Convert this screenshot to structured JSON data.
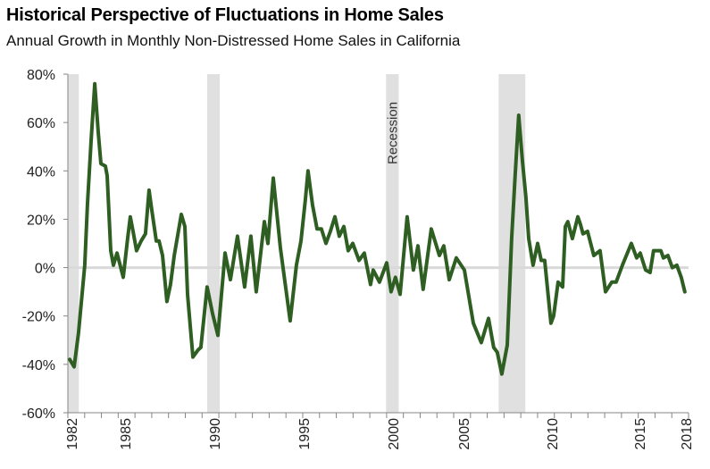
{
  "title": "Historical Perspective of Fluctuations in Home Sales",
  "subtitle": "Annual Growth in Monthly Non-Distressed Home Sales in California",
  "chart_data": {
    "type": "line",
    "title": "Historical Perspective of Fluctuations in Home Sales",
    "subtitle": "Annual Growth in Monthly Non-Distressed Home Sales in California",
    "xlabel": "",
    "ylabel": "",
    "ylim": [
      -60,
      80
    ],
    "yticks": [
      80,
      60,
      40,
      20,
      0,
      -20,
      -40,
      -60
    ],
    "ytick_labels": [
      "80%",
      "60%",
      "40%",
      "20%",
      "0%",
      "-20%",
      "-40%",
      "-60%"
    ],
    "xticks": [
      "1982",
      "1985",
      "1990",
      "1995",
      "2000",
      "2005",
      "2010",
      "2015",
      "2018"
    ],
    "grid": false,
    "zero_line": true,
    "line_color": "#2e5e22",
    "recession_color": "#e0e0e0",
    "recession_label": "Recession",
    "recessions": [
      [
        1982.2,
        1982.85
      ],
      [
        1990.45,
        1991.2
      ],
      [
        2001.05,
        2001.8
      ],
      [
        2007.72,
        2009.3
      ]
    ],
    "series": [
      {
        "x": [
          1982.31,
          1982.57,
          1982.83,
          1983.2,
          1983.36,
          1983.58,
          1983.79,
          1984.0,
          1984.16,
          1984.42,
          1984.53,
          1984.74,
          1984.9,
          1985.11,
          1985.48,
          1985.74,
          1985.9,
          1986.06,
          1986.27,
          1986.54,
          1986.8,
          1987.01,
          1987.17,
          1987.44,
          1987.6,
          1987.81,
          1988.07,
          1988.28,
          1988.5,
          1988.92,
          1989.13,
          1989.29,
          1989.61,
          1989.92,
          1990.08,
          1990.45,
          1990.77,
          1991.09,
          1991.51,
          1991.83,
          1992.25,
          1992.67,
          1993.04,
          1993.36,
          1993.84,
          1994.05,
          1994.37,
          1994.79,
          1995.37,
          1995.74,
          1996.01,
          1996.27,
          1996.43,
          1996.69,
          1996.96,
          1997.22,
          1997.49,
          1997.75,
          1998.02,
          1998.28,
          1998.55,
          1998.81,
          1999.08,
          1999.45,
          1999.76,
          2000.13,
          2000.29,
          2000.66,
          2001.09,
          2001.35,
          2001.61,
          2001.88,
          2002.3,
          2002.67,
          2002.94,
          2003.25,
          2003.73,
          2004.21,
          2004.47,
          2004.79,
          2005.21,
          2005.69,
          2006.22,
          2006.69,
          2007.12,
          2007.43,
          2007.64,
          2007.91,
          2008.23,
          2008.49,
          2008.7,
          2008.91,
          2009.13,
          2009.34,
          2009.5,
          2009.76,
          2010.03,
          2010.24,
          2010.45,
          2010.82,
          2010.98,
          2011.24,
          2011.51,
          2011.67,
          2011.82,
          2012.09,
          2012.41,
          2012.56,
          2012.72,
          2012.99,
          2013.36,
          2013.73,
          2014.05,
          2014.42,
          2014.68,
          2015.05,
          2015.58,
          2015.9,
          2016.11,
          2016.43,
          2016.69,
          2016.9,
          2017.33,
          2017.48,
          2017.75,
          2018.01,
          2018.28,
          2018.54,
          2018.75
        ],
        "y": [
          -38,
          -41,
          -27,
          1,
          26,
          53,
          76,
          56,
          43,
          42,
          38,
          7,
          1,
          6,
          -4,
          12,
          21,
          15,
          7,
          11,
          14,
          32,
          24,
          11,
          11,
          5,
          -14,
          -7,
          5,
          22,
          17,
          -11,
          -37,
          -34,
          -33,
          -8,
          -19,
          -28,
          6,
          -5,
          13,
          -8,
          13,
          -10,
          19,
          10,
          37,
          8,
          -22,
          1,
          11,
          28,
          40,
          26,
          16,
          16,
          10,
          15,
          21,
          13,
          17,
          7,
          10,
          3,
          6,
          -7,
          -1,
          -6,
          2,
          -10,
          -4,
          -11,
          21,
          -1,
          9,
          -9,
          16,
          5,
          9,
          -5,
          4,
          -1,
          -23,
          -31,
          -21,
          -33,
          -35,
          -44,
          -32,
          12,
          38,
          63,
          44,
          29,
          12,
          1,
          10,
          3,
          3,
          -23,
          -20,
          -6,
          -8,
          17,
          19,
          12,
          21,
          18,
          14,
          15,
          5,
          7,
          -10,
          -6,
          -6,
          1,
          10,
          4,
          6,
          -1,
          -2,
          7,
          7,
          4,
          5,
          0,
          1,
          -4,
          -10
        ]
      }
    ]
  }
}
